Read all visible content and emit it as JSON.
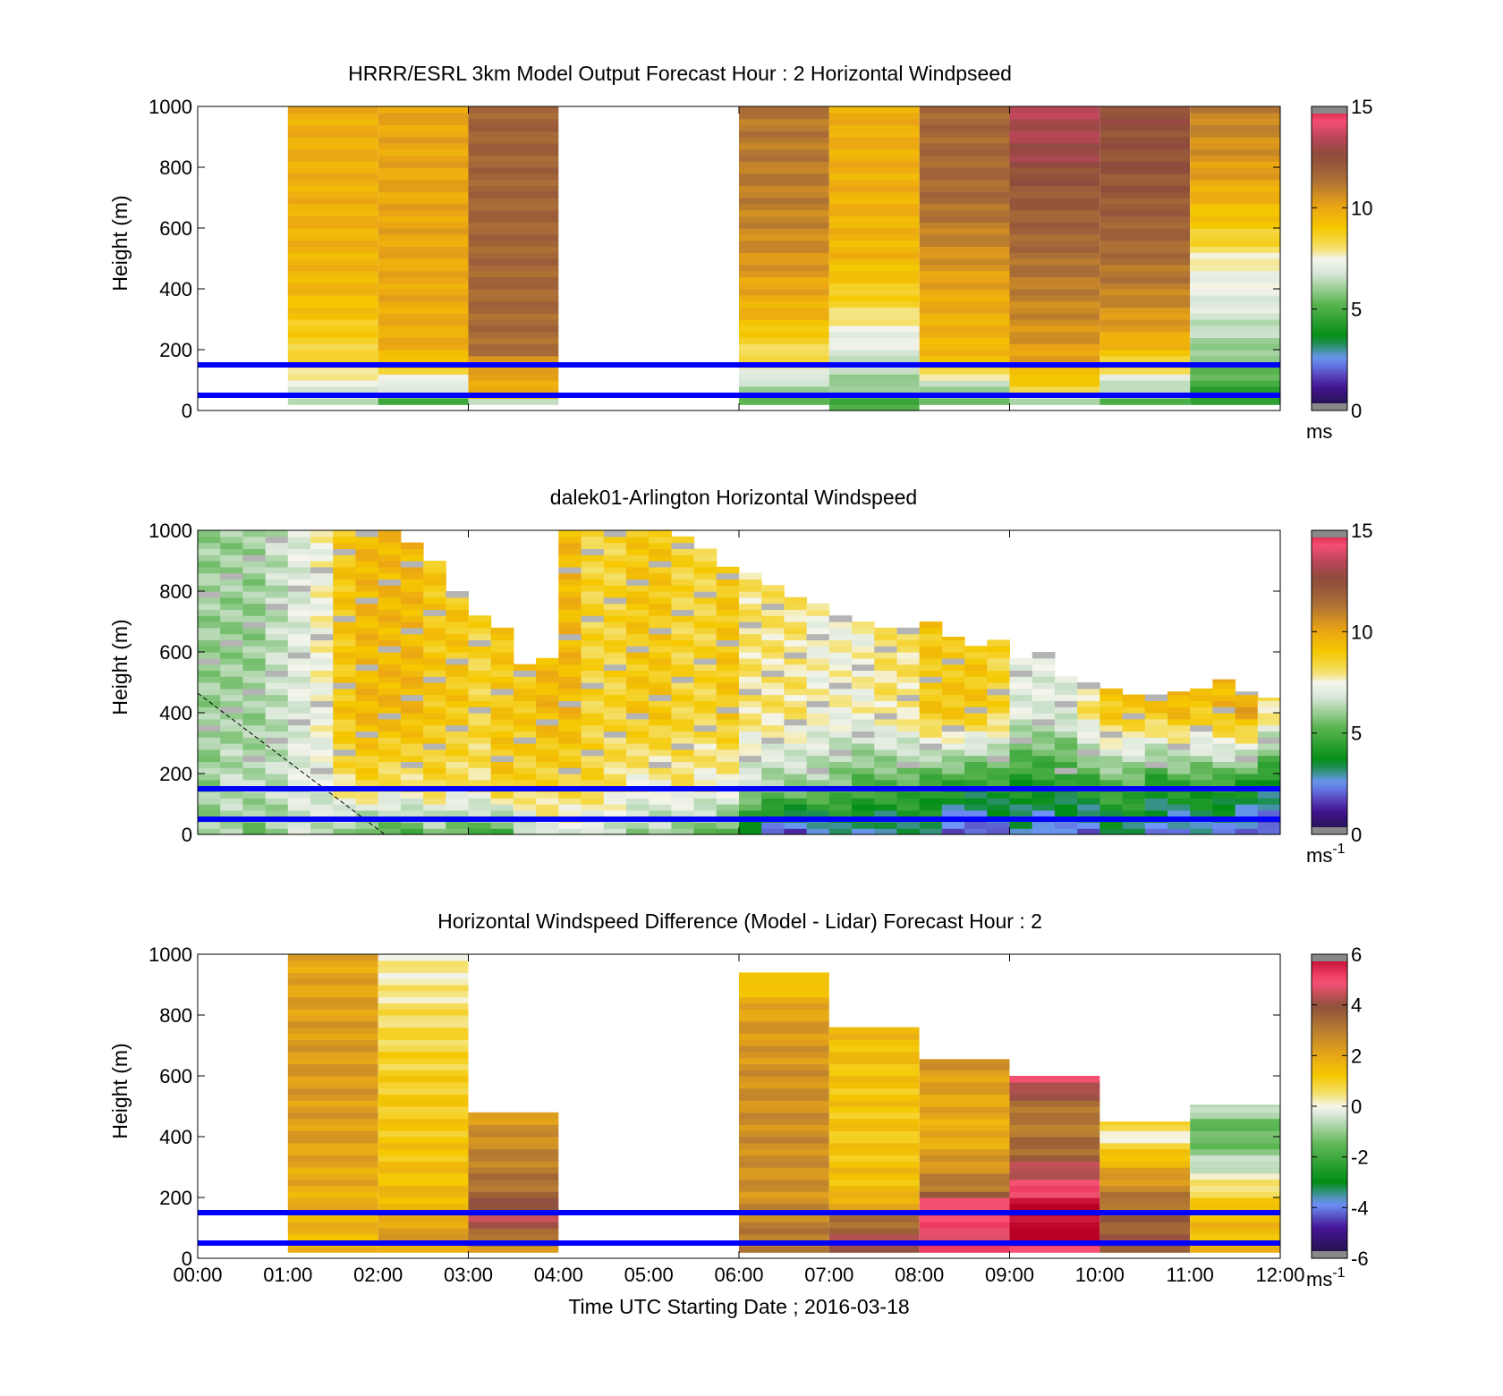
{
  "figure": {
    "xlabel": "Time UTC  Starting Date ; 2016-03-18",
    "x_tick_labels": [
      "00:00",
      "01:00",
      "02:00",
      "03:00",
      "04:00",
      "05:00",
      "06:00",
      "07:00",
      "08:00",
      "09:00",
      "10:00",
      "11:00",
      "12:00"
    ],
    "y_tick_labels": [
      "0",
      "200",
      "400",
      "600",
      "800",
      "1000"
    ]
  },
  "colors": {
    "reference_line": "#0000ff",
    "frame": "#000000",
    "background": "#ffffff"
  },
  "chart_data": [
    {
      "type": "heatmap",
      "title": "HRRR/ESRL 3km Model Output   Forecast Hour : 2 Horizontal Windpseed",
      "ylabel": "Height (m)",
      "xlim": [
        0,
        12
      ],
      "ylim": [
        0,
        1000
      ],
      "colorbar": {
        "range": [
          0,
          15
        ],
        "ticks": [
          "0",
          "5",
          "10",
          "15"
        ],
        "unit": "ms",
        "unit_sup": ""
      },
      "reference_lines_m": [
        50,
        150
      ],
      "columns": [
        {
          "x0": 1,
          "x1": 2,
          "ymin": 20,
          "profile": [
            [
              20,
              5
            ],
            [
              40,
              7
            ],
            [
              80,
              7
            ],
            [
              130,
              8
            ],
            [
              200,
              8.5
            ],
            [
              400,
              9.5
            ],
            [
              600,
              9.7
            ],
            [
              1000,
              9.8
            ]
          ]
        },
        {
          "x0": 2,
          "x1": 3,
          "ymin": 20,
          "profile": [
            [
              20,
              5
            ],
            [
              40,
              5
            ],
            [
              60,
              6.5
            ],
            [
              90,
              7
            ],
            [
              130,
              8.5
            ],
            [
              200,
              9.8
            ],
            [
              600,
              10
            ],
            [
              1000,
              10
            ]
          ]
        },
        {
          "x0": 3,
          "x1": 4,
          "ymin": 20,
          "profile": [
            [
              20,
              5
            ],
            [
              40,
              8
            ],
            [
              60,
              10
            ],
            [
              150,
              10
            ],
            [
              200,
              11.5
            ],
            [
              600,
              11.7
            ],
            [
              1000,
              11.8
            ]
          ]
        },
        {
          "x0": 6,
          "x1": 7,
          "ymin": 20,
          "profile": [
            [
              20,
              5
            ],
            [
              40,
              5
            ],
            [
              60,
              6
            ],
            [
              100,
              6.5
            ],
            [
              150,
              8
            ],
            [
              230,
              8.5
            ],
            [
              300,
              9.5
            ],
            [
              500,
              10.5
            ],
            [
              700,
              11
            ],
            [
              1000,
              11.2
            ]
          ]
        },
        {
          "x0": 7,
          "x1": 8,
          "ymin": 0,
          "profile": [
            [
              0,
              5
            ],
            [
              40,
              5
            ],
            [
              80,
              6
            ],
            [
              150,
              6.5
            ],
            [
              200,
              7
            ],
            [
              280,
              7.5
            ],
            [
              350,
              8.5
            ],
            [
              500,
              9.5
            ],
            [
              700,
              9.7
            ],
            [
              1000,
              9.8
            ]
          ]
        },
        {
          "x0": 8,
          "x1": 9,
          "ymin": 20,
          "profile": [
            [
              20,
              5
            ],
            [
              60,
              6
            ],
            [
              100,
              7
            ],
            [
              150,
              9
            ],
            [
              200,
              9.5
            ],
            [
              400,
              10
            ],
            [
              500,
              10.5
            ],
            [
              600,
              11
            ],
            [
              700,
              11.5
            ],
            [
              1000,
              11.7
            ]
          ]
        },
        {
          "x0": 9,
          "x1": 10,
          "ymin": 20,
          "profile": [
            [
              20,
              5.5
            ],
            [
              60,
              8
            ],
            [
              100,
              9
            ],
            [
              150,
              10
            ],
            [
              250,
              10.5
            ],
            [
              400,
              11
            ],
            [
              600,
              11.8
            ],
            [
              750,
              12.2
            ],
            [
              850,
              13
            ],
            [
              1000,
              13.3
            ]
          ]
        },
        {
          "x0": 10,
          "x1": 11,
          "ymin": 20,
          "profile": [
            [
              20,
              5
            ],
            [
              60,
              6
            ],
            [
              100,
              7
            ],
            [
              150,
              8.5
            ],
            [
              250,
              10
            ],
            [
              400,
              11
            ],
            [
              600,
              11.8
            ],
            [
              800,
              12.3
            ],
            [
              1000,
              12.5
            ]
          ]
        },
        {
          "x0": 11,
          "x1": 12,
          "ymin": 20,
          "profile": [
            [
              20,
              4
            ],
            [
              60,
              4.5
            ],
            [
              100,
              5
            ],
            [
              200,
              6
            ],
            [
              350,
              7
            ],
            [
              480,
              7.5
            ],
            [
              560,
              8.5
            ],
            [
              680,
              9.5
            ],
            [
              800,
              10.3
            ],
            [
              1000,
              11
            ]
          ]
        }
      ]
    },
    {
      "type": "heatmap",
      "title": "dalek01-Arlington  Horizontal Windspeed",
      "ylabel": "Height (m)",
      "xlim": [
        0,
        12
      ],
      "ylim": [
        0,
        1000
      ],
      "colorbar": {
        "range": [
          0,
          15
        ],
        "ticks": [
          "0",
          "5",
          "10",
          "15"
        ],
        "unit": "ms",
        "unit_sup": "-1"
      },
      "reference_lines_m": [
        50,
        150
      ],
      "time_step_h": 0.25,
      "times_h": [
        0.125,
        0.375,
        0.625,
        0.875,
        1.125,
        1.375,
        1.625,
        1.875,
        2.125,
        2.375,
        2.625,
        2.875,
        3.125,
        3.375,
        3.625,
        3.875,
        4.125,
        4.375,
        4.625,
        4.875,
        5.125,
        5.375,
        5.625,
        5.875,
        6.125,
        6.375,
        6.625,
        6.875,
        7.125,
        7.375,
        7.625,
        7.875,
        8.125,
        8.375,
        8.625,
        8.875,
        9.125,
        9.375,
        9.625,
        9.875,
        10.125,
        10.375,
        10.625,
        10.875,
        11.125,
        11.375,
        11.625,
        11.875
      ],
      "tops_m": [
        1000,
        1000,
        1000,
        1000,
        1000,
        1000,
        1000,
        1000,
        1000,
        960,
        900,
        800,
        720,
        680,
        560,
        580,
        1000,
        1000,
        1000,
        1000,
        1000,
        980,
        940,
        880,
        860,
        820,
        780,
        760,
        720,
        700,
        680,
        680,
        700,
        650,
        620,
        640,
        580,
        600,
        520,
        500,
        480,
        460,
        460,
        470,
        480,
        510,
        470,
        450
      ],
      "low_m": [
        6,
        6,
        5.5,
        6,
        6.5,
        6.5,
        6,
        5,
        5,
        5,
        5.5,
        5,
        5,
        4.5,
        6,
        7,
        7,
        6.5,
        6.5,
        6,
        6,
        5.5,
        5.5,
        5,
        3,
        2,
        1.5,
        2,
        3,
        3,
        2.5,
        3,
        3.5,
        1.5,
        1.5,
        2,
        3,
        2,
        2.5,
        2,
        3,
        3,
        2.5,
        2,
        2.5,
        2.5,
        2,
        1.5
      ],
      "mid_m": [
        6,
        6.5,
        6.5,
        6.5,
        7,
        7,
        8,
        8.5,
        8,
        8,
        8.5,
        8,
        8,
        9,
        8.5,
        8.5,
        8.5,
        8.5,
        8,
        7.5,
        7.5,
        8,
        7.5,
        7.5,
        6.5,
        6,
        6,
        6,
        5.5,
        5,
        5,
        5,
        4.5,
        4.5,
        4,
        4.5,
        4,
        4,
        4,
        4.5,
        5,
        5,
        4,
        4.5,
        4.5,
        4.5,
        4,
        3.5
      ],
      "upper_m": [
        6,
        6,
        6,
        6.5,
        7,
        7.5,
        9,
        9.5,
        9.5,
        9.5,
        9,
        9,
        8.5,
        9,
        9,
        9.5,
        9.5,
        8.5,
        8.5,
        9,
        9,
        8.5,
        8.5,
        9,
        8,
        8,
        8,
        7.5,
        7.5,
        7.5,
        8,
        8,
        9,
        9,
        9,
        8.5,
        7,
        7,
        7,
        8,
        9,
        9,
        9,
        9.5,
        9,
        9.5,
        10,
        8
      ]
    },
    {
      "type": "heatmap",
      "title": "Horizontal Windspeed Difference (Model - Lidar) Forecast Hour : 2",
      "ylabel": "Height (m)",
      "xlim": [
        0,
        12
      ],
      "ylim": [
        0,
        1000
      ],
      "colorbar": {
        "range": [
          -6,
          6
        ],
        "ticks": [
          "-6",
          "-4",
          "-2",
          "0",
          "2",
          "4",
          "6"
        ],
        "unit": "ms",
        "unit_sup": "-1"
      },
      "reference_lines_m": [
        50,
        150
      ],
      "columns": [
        {
          "x0": 1,
          "x1": 2,
          "ymin": 20,
          "ymax": 1000,
          "profile": [
            [
              20,
              1.5
            ],
            [
              200,
              1.8
            ],
            [
              400,
              2.2
            ],
            [
              600,
              2.3
            ],
            [
              800,
              2.2
            ],
            [
              1000,
              2
            ]
          ]
        },
        {
          "x0": 2,
          "x1": 3,
          "ymin": 20,
          "ymax": 1000,
          "profile": [
            [
              20,
              2
            ],
            [
              100,
              2.2
            ],
            [
              200,
              1.5
            ],
            [
              400,
              1.2
            ],
            [
              600,
              1
            ],
            [
              800,
              0.6
            ],
            [
              900,
              0.3
            ],
            [
              1000,
              0.2
            ]
          ]
        },
        {
          "x0": 3,
          "x1": 4,
          "ymin": 20,
          "ymax": 480,
          "profile": [
            [
              20,
              2
            ],
            [
              80,
              3.5
            ],
            [
              150,
              4.5
            ],
            [
              200,
              3.5
            ],
            [
              300,
              3
            ],
            [
              400,
              2.6
            ],
            [
              480,
              2.3
            ]
          ]
        },
        {
          "x0": 6,
          "x1": 7,
          "ymin": 20,
          "ymax": 940,
          "profile": [
            [
              20,
              3
            ],
            [
              100,
              3
            ],
            [
              200,
              2.5
            ],
            [
              400,
              2.6
            ],
            [
              600,
              2.5
            ],
            [
              800,
              2.2
            ],
            [
              880,
              1.5
            ],
            [
              910,
              1
            ],
            [
              940,
              1.6
            ]
          ]
        },
        {
          "x0": 7,
          "x1": 8,
          "ymin": 20,
          "ymax": 760,
          "profile": [
            [
              20,
              4.5
            ],
            [
              100,
              3.6
            ],
            [
              140,
              3.2
            ],
            [
              200,
              1.5
            ],
            [
              400,
              1.2
            ],
            [
              600,
              1.3
            ],
            [
              760,
              1.5
            ]
          ]
        },
        {
          "x0": 8,
          "x1": 9,
          "ymin": 20,
          "ymax": 655,
          "profile": [
            [
              20,
              5
            ],
            [
              180,
              4.8
            ],
            [
              230,
              3.2
            ],
            [
              300,
              2.5
            ],
            [
              400,
              1.8
            ],
            [
              600,
              2.2
            ],
            [
              655,
              2.5
            ]
          ]
        },
        {
          "x0": 9,
          "x1": 10,
          "ymin": 20,
          "ymax": 600,
          "profile": [
            [
              20,
              4.5
            ],
            [
              60,
              6
            ],
            [
              190,
              6
            ],
            [
              210,
              5
            ],
            [
              280,
              4.5
            ],
            [
              350,
              3.5
            ],
            [
              450,
              3
            ],
            [
              520,
              3.5
            ],
            [
              560,
              4.5
            ],
            [
              600,
              4.8
            ]
          ]
        },
        {
          "x0": 10,
          "x1": 11,
          "ymin": 20,
          "ymax": 450,
          "profile": [
            [
              20,
              4
            ],
            [
              160,
              3.5
            ],
            [
              250,
              2.5
            ],
            [
              330,
              1.5
            ],
            [
              380,
              0.5
            ],
            [
              420,
              0
            ],
            [
              450,
              1.2
            ]
          ]
        },
        {
          "x0": 11,
          "x1": 12,
          "ymin": 20,
          "ymax": 505,
          "profile": [
            [
              20,
              1.5
            ],
            [
              120,
              1.5
            ],
            [
              200,
              1
            ],
            [
              270,
              0
            ],
            [
              330,
              -0.8
            ],
            [
              400,
              -1.6
            ],
            [
              460,
              -1.2
            ],
            [
              505,
              -0.4
            ]
          ]
        }
      ]
    }
  ]
}
